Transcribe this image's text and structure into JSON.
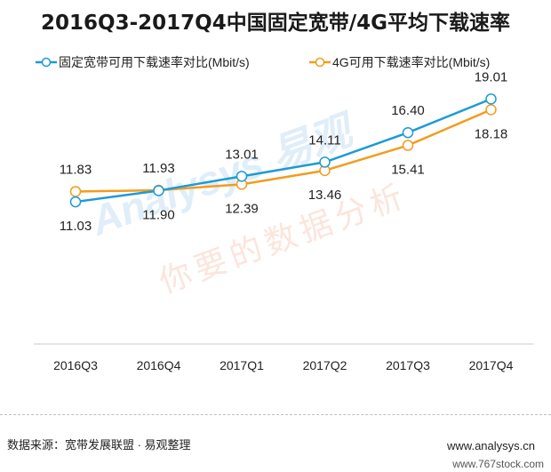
{
  "chart_data": {
    "type": "line",
    "title": "2016Q3-2017Q4中国固定宽带/4G平均下载速率",
    "categories": [
      "2016Q3",
      "2016Q4",
      "2017Q1",
      "2017Q2",
      "2017Q3",
      "2017Q4"
    ],
    "series": [
      {
        "name": "固定宽带可用下载速率对比(Mbit/s)",
        "color": "#1e9ad6",
        "values": [
          11.03,
          11.9,
          13.01,
          14.11,
          16.4,
          19.01
        ]
      },
      {
        "name": "4G可用下载速率对比(Mbit/s)",
        "color": "#f29c1f",
        "values": [
          11.83,
          11.93,
          12.39,
          13.46,
          15.41,
          18.18
        ]
      }
    ],
    "value_labels": [
      [
        "11.03",
        "11.90",
        "13.01",
        "14.11",
        "16.40",
        "19.01"
      ],
      [
        "11.83",
        "11.93",
        "12.39",
        "13.46",
        "15.41",
        "18.18"
      ]
    ],
    "ylim": [
      0,
      20
    ],
    "grid": false,
    "legend": "top"
  },
  "footer": {
    "source": "数据来源：宽带发展联盟 · 易观整理",
    "site": "www.analysys.cn"
  },
  "watermark": {
    "brand": "Analysys 易观",
    "slogan": "你要的数据分析",
    "corner": "www.767stock.com"
  }
}
